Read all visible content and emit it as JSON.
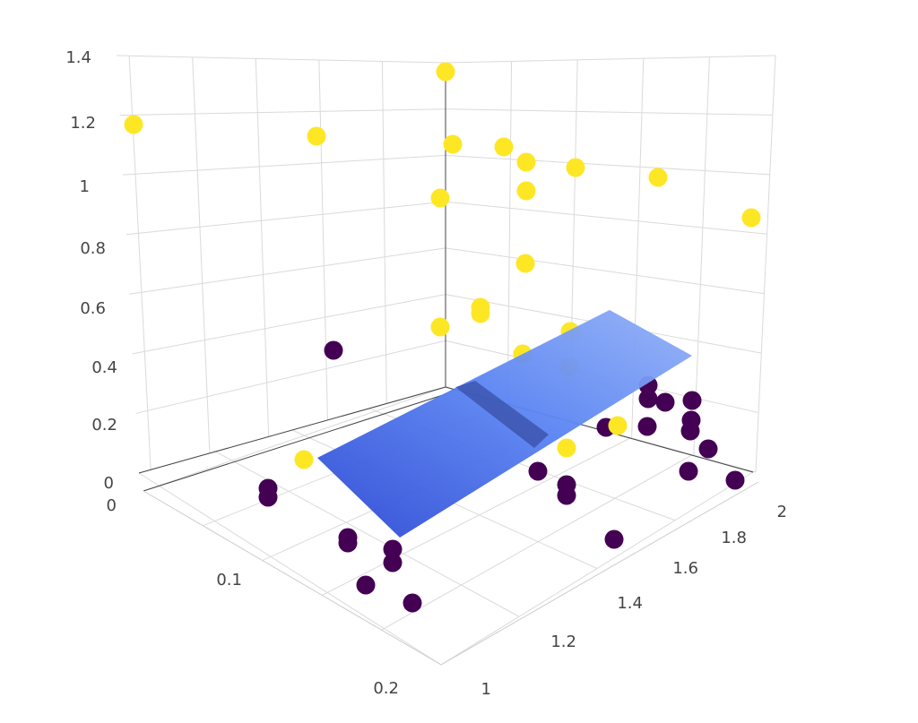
{
  "chart_data": {
    "type": "scatter3d",
    "title": "",
    "grid": true,
    "axes": {
      "z": {
        "label": "",
        "ticks": [
          "0",
          "0.2",
          "0.4",
          "0.6",
          "0.8",
          "1",
          "1.2",
          "1.4"
        ]
      },
      "x": {
        "label": "",
        "ticks": [
          "0",
          "0.1",
          "0.2"
        ]
      },
      "y": {
        "label": "",
        "ticks": [
          "1",
          "1.2",
          "1.4",
          "1.6",
          "1.8",
          "2"
        ]
      }
    },
    "colors": {
      "class_1": "#fde725",
      "class_0": "#440154",
      "plane": "#4f74ee"
    },
    "series": [
      {
        "class": 1,
        "points": [
          [
            0.0,
            1.0,
            1.2
          ],
          [
            0.0,
            1.18,
            1.14
          ],
          [
            0.0,
            1.53,
            1.35
          ],
          [
            0.0,
            1.5,
            1.12
          ],
          [
            0.0,
            1.52,
            0.95
          ],
          [
            0.0,
            1.52,
            0.48
          ],
          [
            0.0,
            1.65,
            0.62
          ],
          [
            0.0,
            1.65,
            0.6
          ],
          [
            0.0,
            1.73,
            1.1
          ],
          [
            0.0,
            1.78,
            1.05
          ],
          [
            0.0,
            1.78,
            0.97
          ],
          [
            0.0,
            1.78,
            0.77
          ],
          [
            0.0,
            1.72,
            0.41
          ],
          [
            0.0,
            1.86,
            0.5
          ],
          [
            0.0,
            1.86,
            0.41
          ],
          [
            0.0,
            1.83,
            1.03
          ],
          [
            0.0,
            1.97,
            1.0
          ],
          [
            0.0,
            2.0,
            0.9
          ],
          [
            0.09,
            1.0,
            0.0
          ],
          [
            0.03,
            1.78,
            0.05
          ],
          [
            0.01,
            1.95,
            0.1
          ]
        ]
      },
      {
        "class": 0,
        "points": [
          [
            0.0,
            1.3,
            0.43
          ],
          [
            0.1,
            1.0,
            0.0
          ],
          [
            0.11,
            1.0,
            0.0
          ],
          [
            0.16,
            1.0,
            0.0
          ],
          [
            0.16,
            1.02,
            0.0
          ],
          [
            0.17,
            1.15,
            0.0
          ],
          [
            0.18,
            1.18,
            0.0
          ],
          [
            0.19,
            1.12,
            0.0
          ],
          [
            0.2,
            1.17,
            0.0
          ],
          [
            0.02,
            1.82,
            0.0
          ],
          [
            0.05,
            1.82,
            0.0
          ],
          [
            0.06,
            1.82,
            0.0
          ],
          [
            0.1,
            1.9,
            0.0
          ],
          [
            0.01,
            1.98,
            0.04
          ],
          [
            0.03,
            2.0,
            0.0
          ],
          [
            0.01,
            2.0,
            0.12
          ],
          [
            0.02,
            2.0,
            0.08
          ],
          [
            0.04,
            2.0,
            0.06
          ],
          [
            0.06,
            2.0,
            0.03
          ],
          [
            0.08,
            2.0,
            0.0
          ],
          [
            0.01,
            1.9,
            0.05
          ],
          [
            0.04,
            1.92,
            0.06
          ],
          [
            0.05,
            1.88,
            0.04
          ]
        ]
      }
    ],
    "surface": {
      "type": "plane",
      "corners": [
        [
          0.0,
          1.08,
          0.0
        ],
        [
          0.0,
          2.0,
          0.8
        ],
        [
          0.17,
          2.0,
          0.8
        ],
        [
          0.17,
          1.08,
          0.0
        ]
      ]
    }
  }
}
